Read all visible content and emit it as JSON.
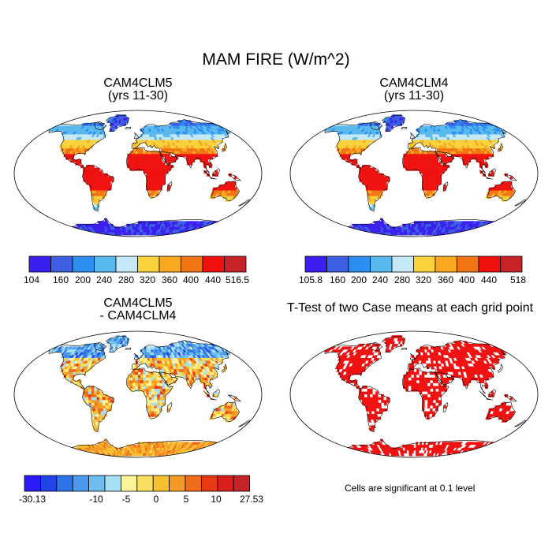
{
  "figure": {
    "title": "MAM FIRE (W/m^2)",
    "note": "Cells are significant at 0.1 level"
  },
  "panels": [
    {
      "id": "p1",
      "title_line1": "CAM4CLM5",
      "title_line2": "(yrs 11-30)",
      "kind": "absolute"
    },
    {
      "id": "p2",
      "title_line1": "CAM4CLM4",
      "title_line2": "(yrs 11-30)",
      "kind": "absolute"
    },
    {
      "id": "p3",
      "title_line1": "CAM4CLM5",
      "title_line2": "- CAM4CLM4",
      "kind": "difference"
    },
    {
      "id": "p4",
      "title_line1": "T-Test of two Case means at each grid point",
      "kind": "significance"
    }
  ],
  "colorbars": {
    "p1": {
      "colors": [
        "#3a1ef0",
        "#3b5fe0",
        "#2d8ef2",
        "#57b8ee",
        "#c4e8f4",
        "#f9d13b",
        "#f8a81e",
        "#f27513",
        "#f0110f",
        "#c72228"
      ],
      "labels": [
        "104",
        "160",
        "200",
        "240",
        "280",
        "320",
        "360",
        "400",
        "440",
        "516.5"
      ]
    },
    "p2": {
      "colors": [
        "#3a1ef0",
        "#3b5fe0",
        "#2d8ef2",
        "#57b8ee",
        "#c4e8f4",
        "#f9d13b",
        "#f8a81e",
        "#f27513",
        "#f0110f",
        "#c72228"
      ],
      "labels": [
        "105.8",
        "160",
        "200",
        "240",
        "280",
        "320",
        "360",
        "400",
        "440",
        "518"
      ]
    },
    "p3": {
      "colors": [
        "#2a1af5",
        "#2243e8",
        "#2f74e6",
        "#4b99ec",
        "#6dbeee",
        "#a7dff5",
        "#fdf39a",
        "#f9e060",
        "#f8c030",
        "#f59b25",
        "#ef6c1d",
        "#e63a13",
        "#d91e1b",
        "#c72228"
      ],
      "labels": [
        "-30.13",
        "-10",
        "-5",
        "0",
        "5",
        "10",
        "27.53"
      ]
    }
  },
  "palette": {
    "land_base": "#cc2a2a",
    "ocean": "#ffffff",
    "significant": "#f01010"
  }
}
